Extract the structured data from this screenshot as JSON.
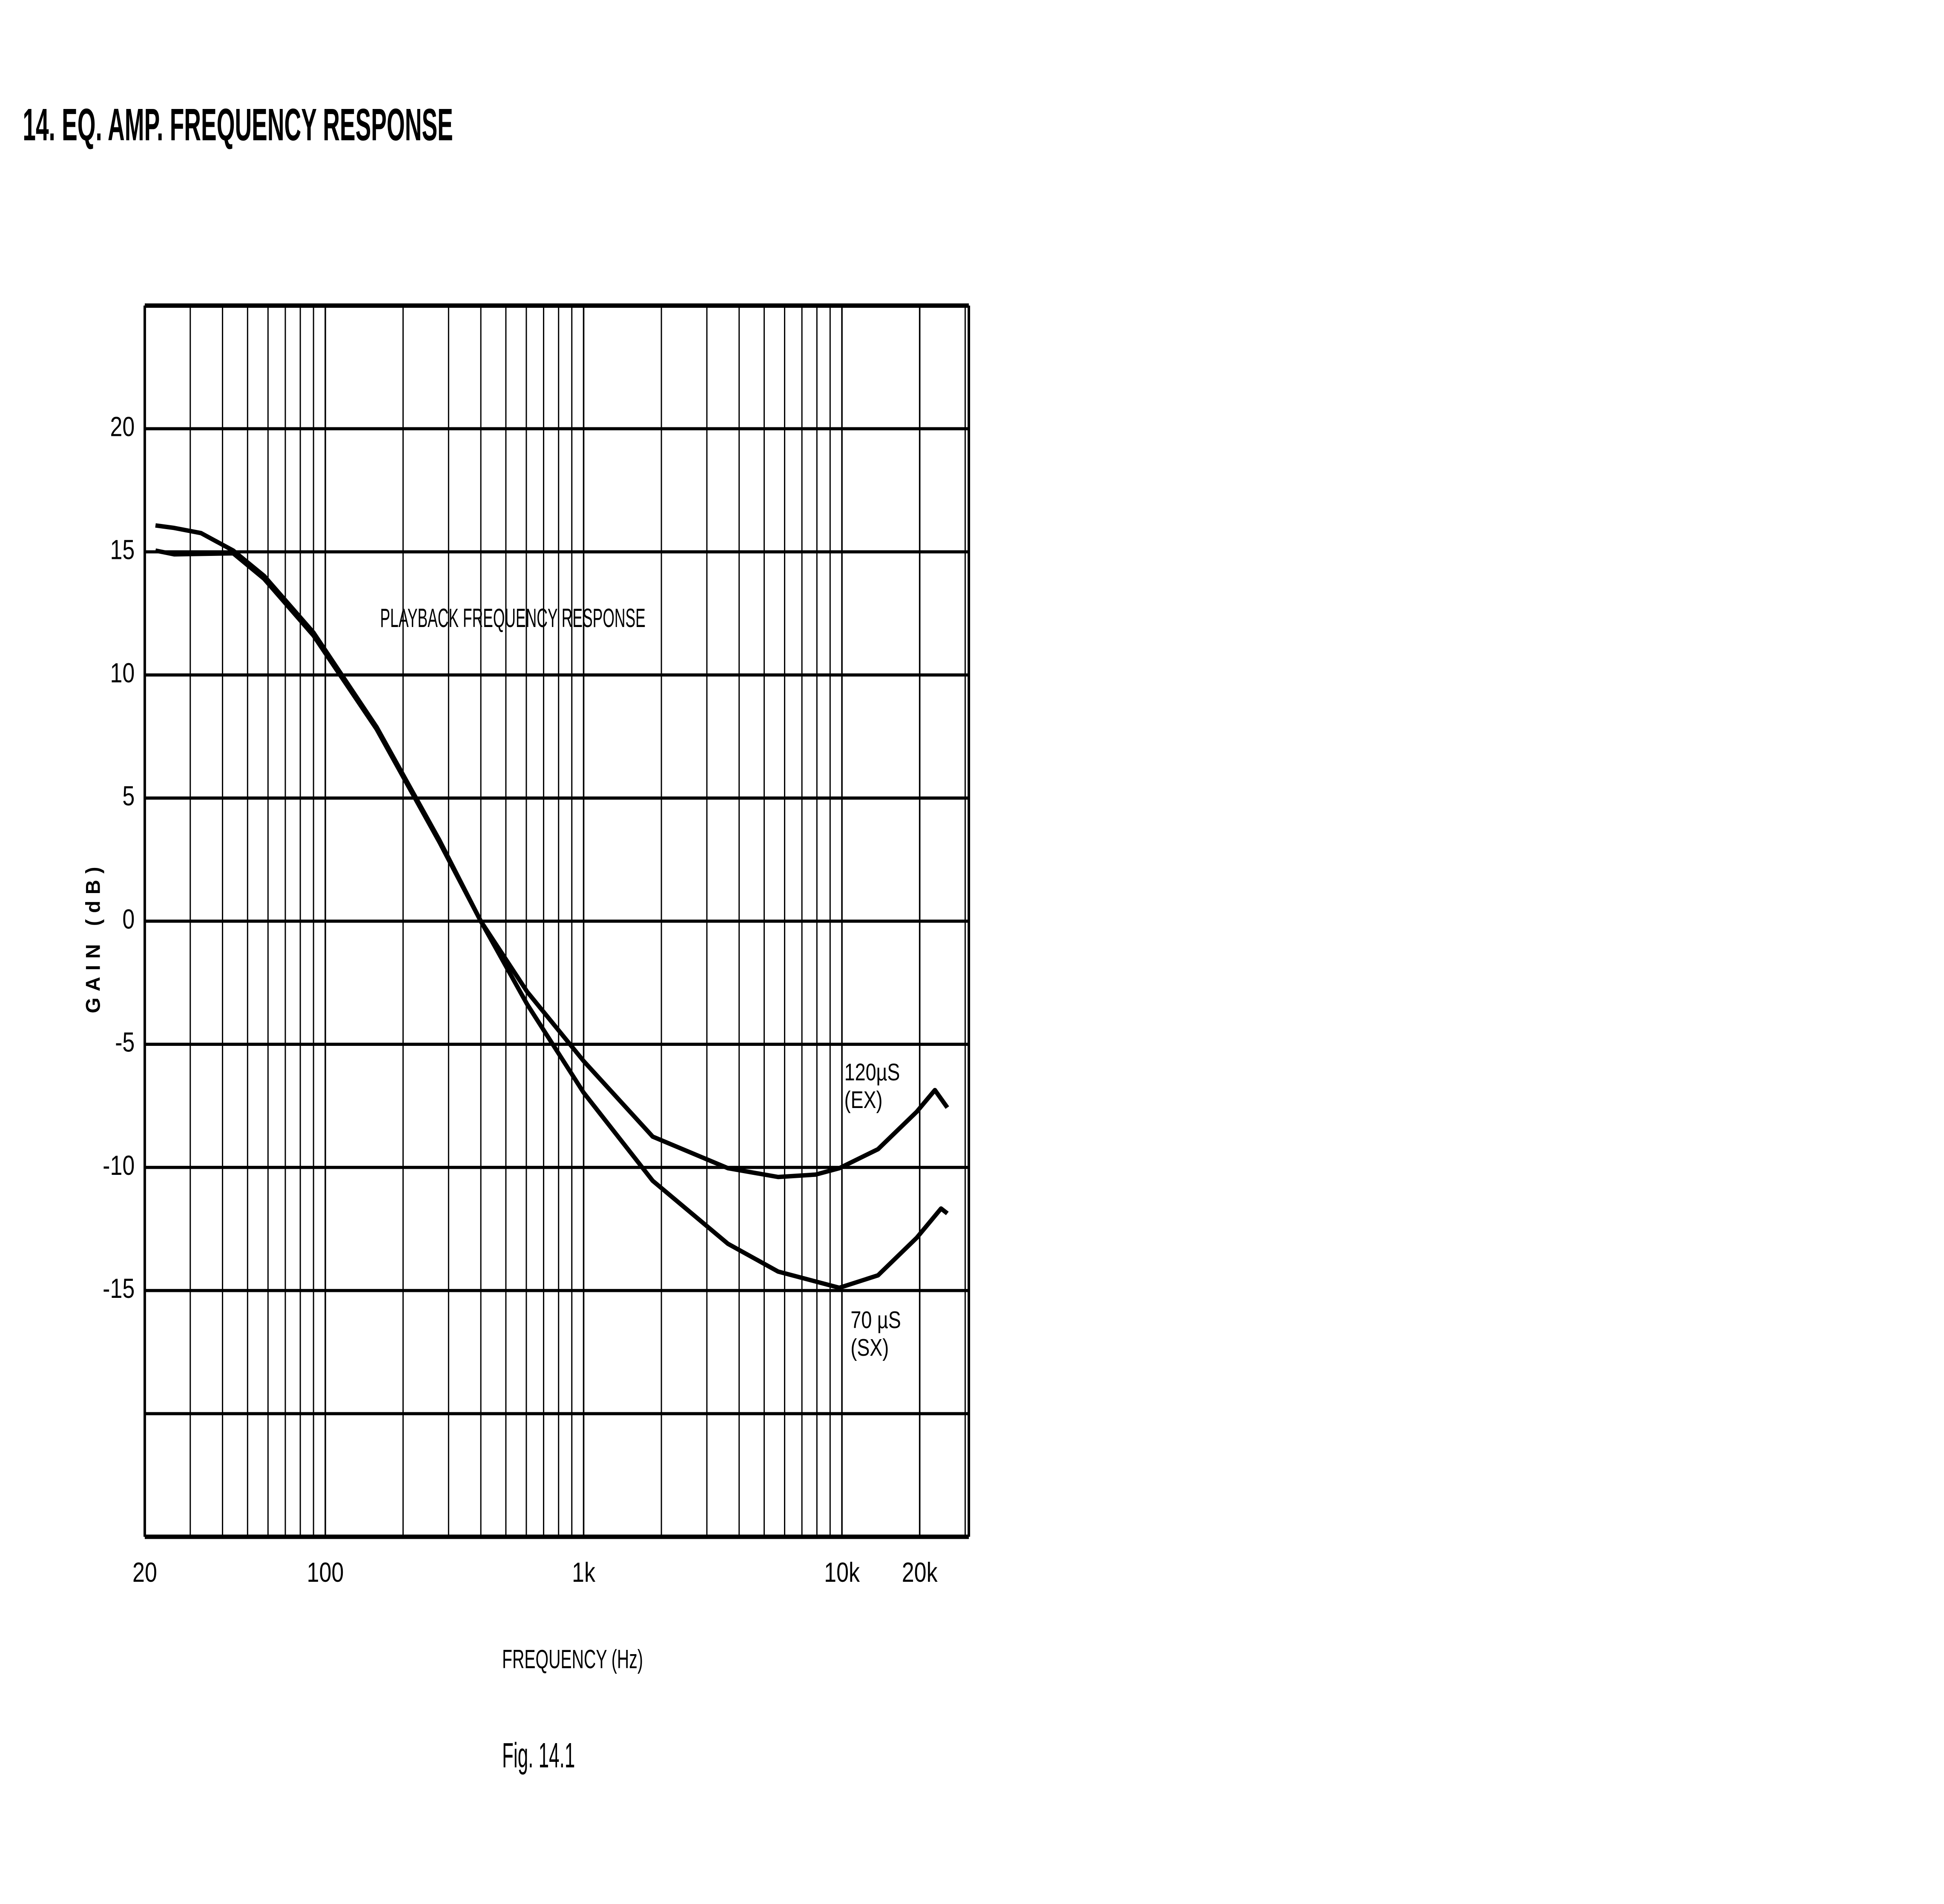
{
  "chart_data": {
    "type": "line",
    "title": "14. EQ. AMP. FREQUENCY RESPONSE",
    "annotation": "PLAYBACK FREQUENCY RESPONSE",
    "xlabel": "FREQUENCY (Hz)",
    "ylabel": "GAIN (dB)",
    "caption": "Fig. 14.1",
    "xscale": "log",
    "grid": true,
    "minor_grid": true,
    "xlim": [
      20,
      31000
    ],
    "ylim": [
      -25,
      25
    ],
    "xticks": [
      20,
      100,
      {
        "value": 1000,
        "label": "1k"
      },
      {
        "value": 10000,
        "label": "10k"
      },
      {
        "value": 20000,
        "label": "20k"
      }
    ],
    "yticks": [
      {
        "value": -20,
        "label": null
      },
      -15,
      -10,
      -5,
      0,
      5,
      10,
      15,
      20
    ],
    "series": [
      {
        "name": "120µS\n(EX)",
        "color": "#000000",
        "x": [
          22,
          26,
          44,
          58,
          90,
          158,
          277,
          400,
          605,
          1000,
          1850,
          3620,
          5660,
          7910,
          9780,
          13800,
          19500,
          22900,
          25600
        ],
        "values": [
          15.05,
          14.9,
          14.94,
          13.9,
          11.6,
          7.8,
          3.2,
          0,
          -2.87,
          -5.68,
          -8.75,
          -10.03,
          -10.39,
          -10.29,
          -10.03,
          -9.26,
          -7.73,
          -6.86,
          -7.57
        ]
      },
      {
        "name": "70 µS\n(SX)",
        "color": "#000000",
        "x": [
          22,
          26,
          33,
          44,
          58,
          90,
          158,
          277,
          400,
          605,
          1000,
          1850,
          3620,
          5660,
          9780,
          13800,
          19500,
          24200,
          25600
        ],
        "values": [
          16.07,
          15.97,
          15.76,
          15.05,
          14.02,
          11.72,
          7.88,
          3.28,
          0,
          -3.38,
          -6.96,
          -10.54,
          -13.1,
          -14.23,
          -14.89,
          -14.38,
          -12.85,
          -11.67,
          -11.87
        ]
      }
    ]
  }
}
